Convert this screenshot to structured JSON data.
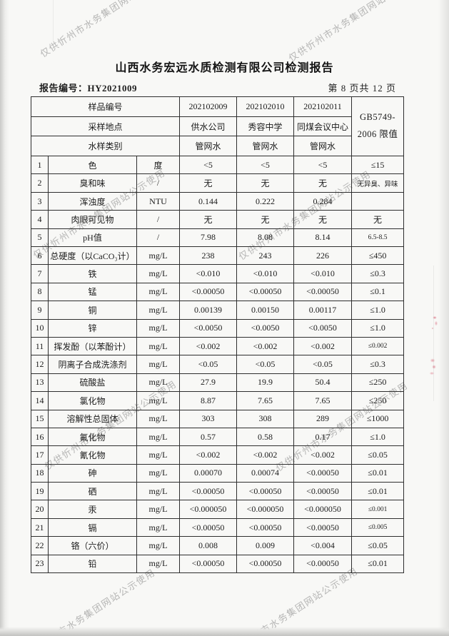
{
  "page": {
    "title": "山西水务宏远水质检测有限公司检测报告",
    "report_no": "报告编号：HY2021009",
    "page_indicator": "第 8 页共 12 页",
    "watermark_text": "仅供忻州市水务集团网站公示使用"
  },
  "table": {
    "header": {
      "sample_id_label": "样品编号",
      "location_label": "采样地点",
      "type_label": "水样类别",
      "sample_ids": [
        "202102009",
        "202102010",
        "202102011"
      ],
      "locations": [
        "供水公司",
        "秀容中学",
        "同煤会议中心"
      ],
      "types": [
        "管网水",
        "管网水",
        "管网水"
      ],
      "limit_header_line1": "GB5749-",
      "limit_header_line2": "2006 限值"
    },
    "rows": [
      {
        "no": "1",
        "name": "色",
        "unit": "度",
        "v1": "<5",
        "v2": "<5",
        "v3": "<5",
        "limit": "≤15"
      },
      {
        "no": "2",
        "name": "臭和味",
        "unit": "/",
        "v1": "无",
        "v2": "无",
        "v3": "无",
        "limit": "无异臭、异味"
      },
      {
        "no": "3",
        "name": "浑浊度",
        "unit": "NTU",
        "v1": "0.144",
        "v2": "0.222",
        "v3": "0.284",
        "limit": ""
      },
      {
        "no": "4",
        "name": "肉眼可见物",
        "unit": "/",
        "v1": "无",
        "v2": "无",
        "v3": "无",
        "limit": "无"
      },
      {
        "no": "5",
        "name": "pH值",
        "unit": "/",
        "v1": "7.98",
        "v2": "8.08",
        "v3": "8.14",
        "limit": "6.5-8.5"
      },
      {
        "no": "6",
        "name": "总硬度（以CaCO₃计）",
        "unit": "mg/L",
        "v1": "238",
        "v2": "243",
        "v3": "226",
        "limit": "≤450"
      },
      {
        "no": "7",
        "name": "铁",
        "unit": "mg/L",
        "v1": "<0.010",
        "v2": "<0.010",
        "v3": "<0.010",
        "limit": "≤0.3"
      },
      {
        "no": "8",
        "name": "锰",
        "unit": "mg/L",
        "v1": "<0.00050",
        "v2": "<0.00050",
        "v3": "<0.00050",
        "limit": "≤0.1"
      },
      {
        "no": "9",
        "name": "铜",
        "unit": "mg/L",
        "v1": "0.00139",
        "v2": "0.00150",
        "v3": "0.00117",
        "limit": "≤1.0"
      },
      {
        "no": "10",
        "name": "锌",
        "unit": "mg/L",
        "v1": "<0.0050",
        "v2": "<0.0050",
        "v3": "<0.0050",
        "limit": "≤1.0"
      },
      {
        "no": "11",
        "name": "挥发酚（以苯酚计）",
        "unit": "mg/L",
        "v1": "<0.002",
        "v2": "<0.002",
        "v3": "<0.002",
        "limit": "≤0.002"
      },
      {
        "no": "12",
        "name": "阴离子合成洗涤剂",
        "unit": "mg/L",
        "v1": "<0.05",
        "v2": "<0.05",
        "v3": "<0.05",
        "limit": "≤0.3"
      },
      {
        "no": "13",
        "name": "硫酸盐",
        "unit": "mg/L",
        "v1": "27.9",
        "v2": "19.9",
        "v3": "50.4",
        "limit": "≤250"
      },
      {
        "no": "14",
        "name": "氯化物",
        "unit": "mg/L",
        "v1": "8.87",
        "v2": "7.65",
        "v3": "7.65",
        "limit": "≤250"
      },
      {
        "no": "15",
        "name": "溶解性总固体",
        "unit": "mg/L",
        "v1": "303",
        "v2": "308",
        "v3": "289",
        "limit": "≤1000"
      },
      {
        "no": "16",
        "name": "氟化物",
        "unit": "mg/L",
        "v1": "0.57",
        "v2": "0.58",
        "v3": "0.17",
        "limit": "≤1.0"
      },
      {
        "no": "17",
        "name": "氰化物",
        "unit": "mg/L",
        "v1": "<0.002",
        "v2": "<0.002",
        "v3": "<0.002",
        "limit": "≤0.05"
      },
      {
        "no": "18",
        "name": "砷",
        "unit": "mg/L",
        "v1": "0.00070",
        "v2": "0.00074",
        "v3": "<0.00050",
        "limit": "≤0.01"
      },
      {
        "no": "19",
        "name": "硒",
        "unit": "mg/L",
        "v1": "<0.00050",
        "v2": "<0.00050",
        "v3": "<0.00050",
        "limit": "≤0.01"
      },
      {
        "no": "20",
        "name": "汞",
        "unit": "mg/L",
        "v1": "<0.000050",
        "v2": "<0.000050",
        "v3": "<0.000050",
        "limit": "≤0.001"
      },
      {
        "no": "21",
        "name": "镉",
        "unit": "mg/L",
        "v1": "<0.00050",
        "v2": "<0.00050",
        "v3": "<0.00050",
        "limit": "≤0.005"
      },
      {
        "no": "22",
        "name": "铬（六价）",
        "unit": "mg/L",
        "v1": "0.008",
        "v2": "0.009",
        "v3": "<0.004",
        "limit": "≤0.05"
      },
      {
        "no": "23",
        "name": "铅",
        "unit": "mg/L",
        "v1": "<0.00050",
        "v2": "<0.00050",
        "v3": "<0.00050",
        "limit": "≤0.01"
      }
    ]
  },
  "colors": {
    "paper": "#f8f8f6",
    "ink": "#1f1f1f",
    "watermark": "rgba(128,128,128,0.55)",
    "stamp_red": "#c81e3c"
  }
}
